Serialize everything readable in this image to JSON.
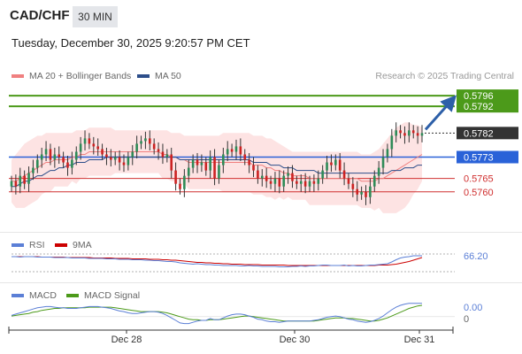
{
  "header": {
    "symbol": "CAD/CHF",
    "timeframe": "30 MIN",
    "datetime": "Tuesday, December 30, 2025 9:20:57 PM CET"
  },
  "legend": {
    "ma20_label": "MA 20 + Bollinger Bands",
    "ma50_label": "MA 50",
    "ma20_color": "#f08080",
    "ma50_color": "#2d4e8a",
    "research": "Research © 2025 Trading Central"
  },
  "rsi_legend": {
    "rsi_label": "RSI",
    "ma_label": "9MA",
    "rsi_color": "#5b7fd6",
    "ma_color": "#cc0000"
  },
  "macd_legend": {
    "macd_label": "MACD",
    "signal_label": "MACD Signal",
    "macd_color": "#5b7fd6",
    "signal_color": "#4c9a1a"
  },
  "chart_data": [
    {
      "type": "candlestick",
      "title": "",
      "ylim": [
        0.5747,
        0.58
      ],
      "x_ticks": [
        "Dec 28",
        "Dec 30",
        "Dec 31"
      ],
      "levels": [
        {
          "value": 0.5796,
          "label": "0.5796",
          "kind": "resistance",
          "color": "#4c9a1a"
        },
        {
          "value": 0.5792,
          "label": "0.5792",
          "kind": "resistance",
          "color": "#4c9a1a"
        },
        {
          "value": 0.5782,
          "label": "0.5782",
          "kind": "last",
          "color": "#333333"
        },
        {
          "value": 0.5773,
          "label": "0.5773",
          "kind": "pivot",
          "color": "#2a62d8"
        },
        {
          "value": 0.5765,
          "label": "0.5765",
          "kind": "support",
          "color": "#d03030"
        },
        {
          "value": 0.576,
          "label": "0.5760",
          "kind": "support",
          "color": "#d03030"
        }
      ],
      "close": [
        0.5764,
        0.5762,
        0.5766,
        0.5763,
        0.5767,
        0.5769,
        0.5772,
        0.5774,
        0.5776,
        0.5772,
        0.5774,
        0.5773,
        0.5771,
        0.5769,
        0.5772,
        0.5775,
        0.5778,
        0.578,
        0.5778,
        0.5777,
        0.5776,
        0.5774,
        0.5773,
        0.5772,
        0.5773,
        0.5771,
        0.577,
        0.5773,
        0.5775,
        0.5778,
        0.5779,
        0.578,
        0.5778,
        0.5776,
        0.5775,
        0.5773,
        0.5774,
        0.5768,
        0.5763,
        0.5761,
        0.5766,
        0.5769,
        0.5772,
        0.577,
        0.5771,
        0.5768,
        0.5773,
        0.5765,
        0.577,
        0.5774,
        0.5776,
        0.5775,
        0.5777,
        0.5774,
        0.5772,
        0.577,
        0.5768,
        0.5765,
        0.5766,
        0.5764,
        0.5763,
        0.5765,
        0.5762,
        0.5766,
        0.5767,
        0.5764,
        0.5763,
        0.5764,
        0.5762,
        0.5764,
        0.5763,
        0.5765,
        0.5768,
        0.5771,
        0.577,
        0.5772,
        0.5768,
        0.5765,
        0.5763,
        0.5761,
        0.5759,
        0.576,
        0.5758,
        0.5762,
        0.5766,
        0.5769,
        0.5773,
        0.5776,
        0.5781,
        0.5783,
        0.5782,
        0.5781,
        0.5783,
        0.5782,
        0.5781,
        0.5782
      ],
      "ma20": [
        0.5764,
        0.5764,
        0.5765,
        0.5766,
        0.5767,
        0.5768,
        0.5769,
        0.577,
        0.5771,
        0.5771,
        0.5772,
        0.5772,
        0.5772,
        0.5772,
        0.5773,
        0.5773,
        0.5774,
        0.5774,
        0.5775,
        0.5775,
        0.5775,
        0.5775,
        0.5775,
        0.5775,
        0.5775,
        0.5775,
        0.5775,
        0.5775,
        0.5775,
        0.5775,
        0.5775,
        0.5775,
        0.5775,
        0.5775,
        0.5775,
        0.5774,
        0.5774,
        0.5773,
        0.5773,
        0.5772,
        0.5772,
        0.5771,
        0.5771,
        0.5771,
        0.5771,
        0.5771,
        0.5771,
        0.5771,
        0.5771,
        0.5771,
        0.5771,
        0.5771,
        0.5771,
        0.5771,
        0.5771,
        0.5771,
        0.577,
        0.577,
        0.577,
        0.5769,
        0.5769,
        0.5768,
        0.5768,
        0.5767,
        0.5767,
        0.5766,
        0.5766,
        0.5766,
        0.5766,
        0.5765,
        0.5765,
        0.5765,
        0.5765,
        0.5765,
        0.5765,
        0.5765,
        0.5765,
        0.5765,
        0.5765,
        0.5765,
        0.5765,
        0.5764,
        0.5764,
        0.5764,
        0.5764,
        0.5765,
        0.5765,
        0.5766,
        0.5767,
        0.5768,
        0.5769,
        0.577,
        0.5771,
        0.5772,
        0.5773,
        0.5774
      ],
      "bb_upper": [
        0.5772,
        0.5774,
        0.5776,
        0.5778,
        0.5779,
        0.578,
        0.5781,
        0.5781,
        0.5782,
        0.5782,
        0.5782,
        0.5782,
        0.5782,
        0.5782,
        0.5782,
        0.5783,
        0.5783,
        0.5783,
        0.5784,
        0.5784,
        0.5784,
        0.5784,
        0.5784,
        0.5784,
        0.5783,
        0.5783,
        0.5783,
        0.5783,
        0.5783,
        0.5783,
        0.5783,
        0.5783,
        0.5783,
        0.5783,
        0.5783,
        0.5783,
        0.5783,
        0.5782,
        0.5782,
        0.5782,
        0.5781,
        0.5781,
        0.5781,
        0.5781,
        0.5781,
        0.5781,
        0.5781,
        0.5781,
        0.5781,
        0.5782,
        0.5782,
        0.5782,
        0.5782,
        0.5782,
        0.5782,
        0.5782,
        0.5781,
        0.5781,
        0.5781,
        0.578,
        0.578,
        0.5779,
        0.5778,
        0.5777,
        0.5776,
        0.5775,
        0.5775,
        0.5775,
        0.5775,
        0.5775,
        0.5775,
        0.5775,
        0.5775,
        0.5775,
        0.5775,
        0.5775,
        0.5775,
        0.5775,
        0.5775,
        0.5775,
        0.5775,
        0.5774,
        0.5774,
        0.5774,
        0.5775,
        0.5776,
        0.5778,
        0.578,
        0.5782,
        0.5784,
        0.5785,
        0.5786,
        0.5786,
        0.5785,
        0.5785,
        0.5784
      ],
      "bb_lower": [
        0.5756,
        0.5754,
        0.5754,
        0.5754,
        0.5755,
        0.5756,
        0.5757,
        0.5759,
        0.576,
        0.576,
        0.5762,
        0.5762,
        0.5762,
        0.5762,
        0.5764,
        0.5763,
        0.5765,
        0.5765,
        0.5766,
        0.5766,
        0.5766,
        0.5766,
        0.5766,
        0.5766,
        0.5767,
        0.5767,
        0.5767,
        0.5767,
        0.5767,
        0.5767,
        0.5767,
        0.5767,
        0.5767,
        0.5767,
        0.5767,
        0.5765,
        0.5765,
        0.5764,
        0.5764,
        0.5762,
        0.5763,
        0.5761,
        0.5761,
        0.5761,
        0.5761,
        0.5761,
        0.5761,
        0.5761,
        0.5761,
        0.576,
        0.576,
        0.576,
        0.576,
        0.576,
        0.576,
        0.576,
        0.5759,
        0.5759,
        0.5759,
        0.5758,
        0.5758,
        0.5757,
        0.5758,
        0.5757,
        0.5758,
        0.5757,
        0.5757,
        0.5757,
        0.5757,
        0.5755,
        0.5755,
        0.5755,
        0.5755,
        0.5755,
        0.5755,
        0.5755,
        0.5755,
        0.5755,
        0.5755,
        0.5755,
        0.5755,
        0.5754,
        0.5754,
        0.5754,
        0.5753,
        0.5754,
        0.5752,
        0.5752,
        0.5752,
        0.5752,
        0.5753,
        0.5754,
        0.5756,
        0.5759,
        0.5761,
        0.5764
      ],
      "ma50": [
        0.5762,
        0.5762,
        0.5763,
        0.5764,
        0.5764,
        0.5765,
        0.5766,
        0.5766,
        0.5767,
        0.5768,
        0.5768,
        0.5769,
        0.5769,
        0.577,
        0.577,
        0.5771,
        0.5771,
        0.5771,
        0.5772,
        0.5772,
        0.5772,
        0.5772,
        0.5773,
        0.5773,
        0.5773,
        0.5773,
        0.5773,
        0.5773,
        0.5773,
        0.5773,
        0.5773,
        0.5773,
        0.5773,
        0.5773,
        0.5773,
        0.5773,
        0.5773,
        0.5773,
        0.5773,
        0.5772,
        0.5772,
        0.5772,
        0.5772,
        0.5772,
        0.5772,
        0.5772,
        0.5772,
        0.5772,
        0.5772,
        0.5772,
        0.5772,
        0.5772,
        0.5772,
        0.5772,
        0.5772,
        0.5772,
        0.5771,
        0.5771,
        0.5771,
        0.5771,
        0.577,
        0.577,
        0.577,
        0.5769,
        0.5769,
        0.5769,
        0.5768,
        0.5768,
        0.5768,
        0.5768,
        0.5768,
        0.5767,
        0.5767,
        0.5767,
        0.5767,
        0.5767,
        0.5767,
        0.5767,
        0.5767,
        0.5767,
        0.5767,
        0.5767,
        0.5767,
        0.5767,
        0.5767,
        0.5767,
        0.5767,
        0.5767,
        0.5768,
        0.5768,
        0.5768,
        0.5769,
        0.5769,
        0.5769,
        0.577,
        0.577
      ]
    },
    {
      "type": "line",
      "title": "RSI",
      "ylim": [
        0,
        100
      ],
      "last_label": "66.20",
      "rsi": [
        64,
        64,
        63,
        64,
        64,
        64,
        63,
        63,
        63,
        63,
        62,
        62,
        62,
        62,
        61,
        61,
        61,
        61,
        60,
        60,
        60,
        60,
        59,
        59,
        59,
        58,
        58,
        58,
        57,
        57,
        57,
        56,
        56,
        55,
        55,
        54,
        53,
        53,
        52,
        50,
        49,
        48,
        47,
        48,
        47,
        46,
        46,
        45,
        45,
        44,
        44,
        44,
        44,
        43,
        43,
        44,
        43,
        43,
        42,
        42,
        42,
        42,
        41,
        41,
        41,
        42,
        42,
        43,
        42,
        43,
        43,
        44,
        45,
        45,
        44,
        44,
        44,
        45,
        43,
        44,
        43,
        43,
        44,
        45,
        45,
        46,
        47,
        48,
        52,
        57,
        61,
        63,
        64,
        66,
        66,
        66
      ],
      "ma9": [
        64,
        64,
        64,
        64,
        64,
        64,
        64,
        63,
        63,
        63,
        63,
        63,
        63,
        62,
        62,
        62,
        62,
        62,
        62,
        61,
        61,
        61,
        61,
        61,
        60,
        60,
        60,
        60,
        59,
        59,
        59,
        59,
        58,
        58,
        58,
        57,
        57,
        56,
        56,
        55,
        54,
        53,
        52,
        51,
        51,
        50,
        50,
        49,
        49,
        48,
        48,
        47,
        47,
        47,
        46,
        46,
        46,
        46,
        45,
        45,
        45,
        45,
        45,
        45,
        44,
        44,
        44,
        44,
        44,
        44,
        44,
        44,
        44,
        44,
        44,
        44,
        44,
        44,
        44,
        44,
        44,
        44,
        44,
        44,
        44,
        45,
        45,
        45,
        46,
        47,
        49,
        51,
        53,
        56,
        59,
        62
      ]
    },
    {
      "type": "line",
      "title": "MACD",
      "last_label": "0.00",
      "zero_label": "0",
      "macd": [
        0.2,
        0.4,
        0.6,
        0.8,
        1.0,
        1.2,
        1.4,
        1.5,
        1.6,
        1.6,
        1.5,
        1.4,
        1.4,
        1.3,
        1.3,
        1.3,
        1.4,
        1.5,
        1.6,
        1.6,
        1.6,
        1.5,
        1.4,
        1.3,
        1.1,
        0.9,
        0.8,
        0.6,
        0.5,
        0.5,
        0.6,
        0.7,
        0.8,
        0.8,
        0.7,
        0.5,
        0.2,
        -0.2,
        -0.6,
        -1.0,
        -1.1,
        -1.1,
        -0.9,
        -0.7,
        -0.6,
        -0.6,
        -0.3,
        -0.5,
        -0.5,
        -0.2,
        0.1,
        0.3,
        0.4,
        0.4,
        0.3,
        0.1,
        -0.1,
        -0.4,
        -0.5,
        -0.7,
        -0.8,
        -0.8,
        -0.9,
        -0.8,
        -0.7,
        -0.7,
        -0.7,
        -0.7,
        -0.7,
        -0.7,
        -0.6,
        -0.5,
        -0.3,
        -0.1,
        0.0,
        0.1,
        0.0,
        -0.2,
        -0.4,
        -0.5,
        -0.7,
        -0.8,
        -0.9,
        -0.8,
        -0.6,
        -0.3,
        0.1,
        0.6,
        1.1,
        1.5,
        1.8,
        2.0,
        2.1,
        2.1,
        2.1,
        2.1
      ],
      "signal": [
        0.1,
        0.2,
        0.3,
        0.4,
        0.5,
        0.7,
        0.8,
        1.0,
        1.1,
        1.2,
        1.3,
        1.3,
        1.4,
        1.4,
        1.4,
        1.4,
        1.4,
        1.4,
        1.5,
        1.5,
        1.5,
        1.5,
        1.5,
        1.5,
        1.4,
        1.3,
        1.2,
        1.1,
        1.0,
        0.9,
        0.8,
        0.8,
        0.8,
        0.8,
        0.8,
        0.7,
        0.6,
        0.4,
        0.2,
        0.0,
        -0.2,
        -0.4,
        -0.5,
        -0.5,
        -0.6,
        -0.6,
        -0.5,
        -0.5,
        -0.5,
        -0.4,
        -0.3,
        -0.2,
        -0.1,
        0.0,
        0.1,
        0.1,
        0.0,
        -0.1,
        -0.2,
        -0.3,
        -0.4,
        -0.5,
        -0.6,
        -0.7,
        -0.7,
        -0.7,
        -0.7,
        -0.7,
        -0.7,
        -0.7,
        -0.7,
        -0.6,
        -0.5,
        -0.4,
        -0.3,
        -0.2,
        -0.2,
        -0.2,
        -0.3,
        -0.3,
        -0.4,
        -0.5,
        -0.6,
        -0.7,
        -0.7,
        -0.6,
        -0.4,
        -0.2,
        0.1,
        0.4,
        0.7,
        1.0,
        1.3,
        1.5,
        1.7,
        1.8
      ]
    }
  ]
}
